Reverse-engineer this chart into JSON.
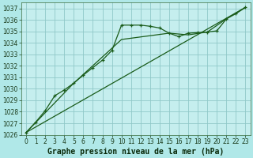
{
  "title": "Graphe pression niveau de la mer (hPa)",
  "background_color": "#b0e8e8",
  "plot_bg_color": "#c5eeee",
  "grid_color": "#90c8c8",
  "line_color": "#1a5c1a",
  "xlim": [
    -0.5,
    23.5
  ],
  "ylim": [
    1026,
    1037.5
  ],
  "xticks": [
    0,
    1,
    2,
    3,
    4,
    5,
    6,
    7,
    8,
    9,
    10,
    11,
    12,
    13,
    14,
    15,
    16,
    17,
    18,
    19,
    20,
    21,
    22,
    23
  ],
  "yticks": [
    1026,
    1027,
    1028,
    1029,
    1030,
    1031,
    1032,
    1033,
    1034,
    1035,
    1036,
    1037
  ],
  "series1_x": [
    0,
    1,
    2,
    3,
    4,
    5,
    6,
    7,
    8,
    9,
    10,
    11,
    12,
    13,
    14,
    15,
    16,
    17,
    18,
    19,
    20,
    21,
    22,
    23
  ],
  "series1_y": [
    1026.2,
    1027.1,
    1028.1,
    1029.4,
    1029.9,
    1030.5,
    1031.2,
    1031.85,
    1032.5,
    1033.35,
    1035.55,
    1035.55,
    1035.55,
    1035.45,
    1035.3,
    1034.85,
    1034.55,
    1034.85,
    1034.9,
    1034.95,
    1035.05,
    1036.1,
    1036.55,
    1037.1
  ],
  "series2_x": [
    0,
    23
  ],
  "series2_y": [
    1026.2,
    1037.1
  ],
  "series3_x": [
    0,
    5,
    10,
    15,
    17,
    19,
    21,
    23
  ],
  "series3_y": [
    1026.2,
    1030.5,
    1034.3,
    1034.85,
    1034.7,
    1034.95,
    1036.1,
    1037.1
  ],
  "title_fontsize": 7,
  "tick_fontsize": 5.5
}
